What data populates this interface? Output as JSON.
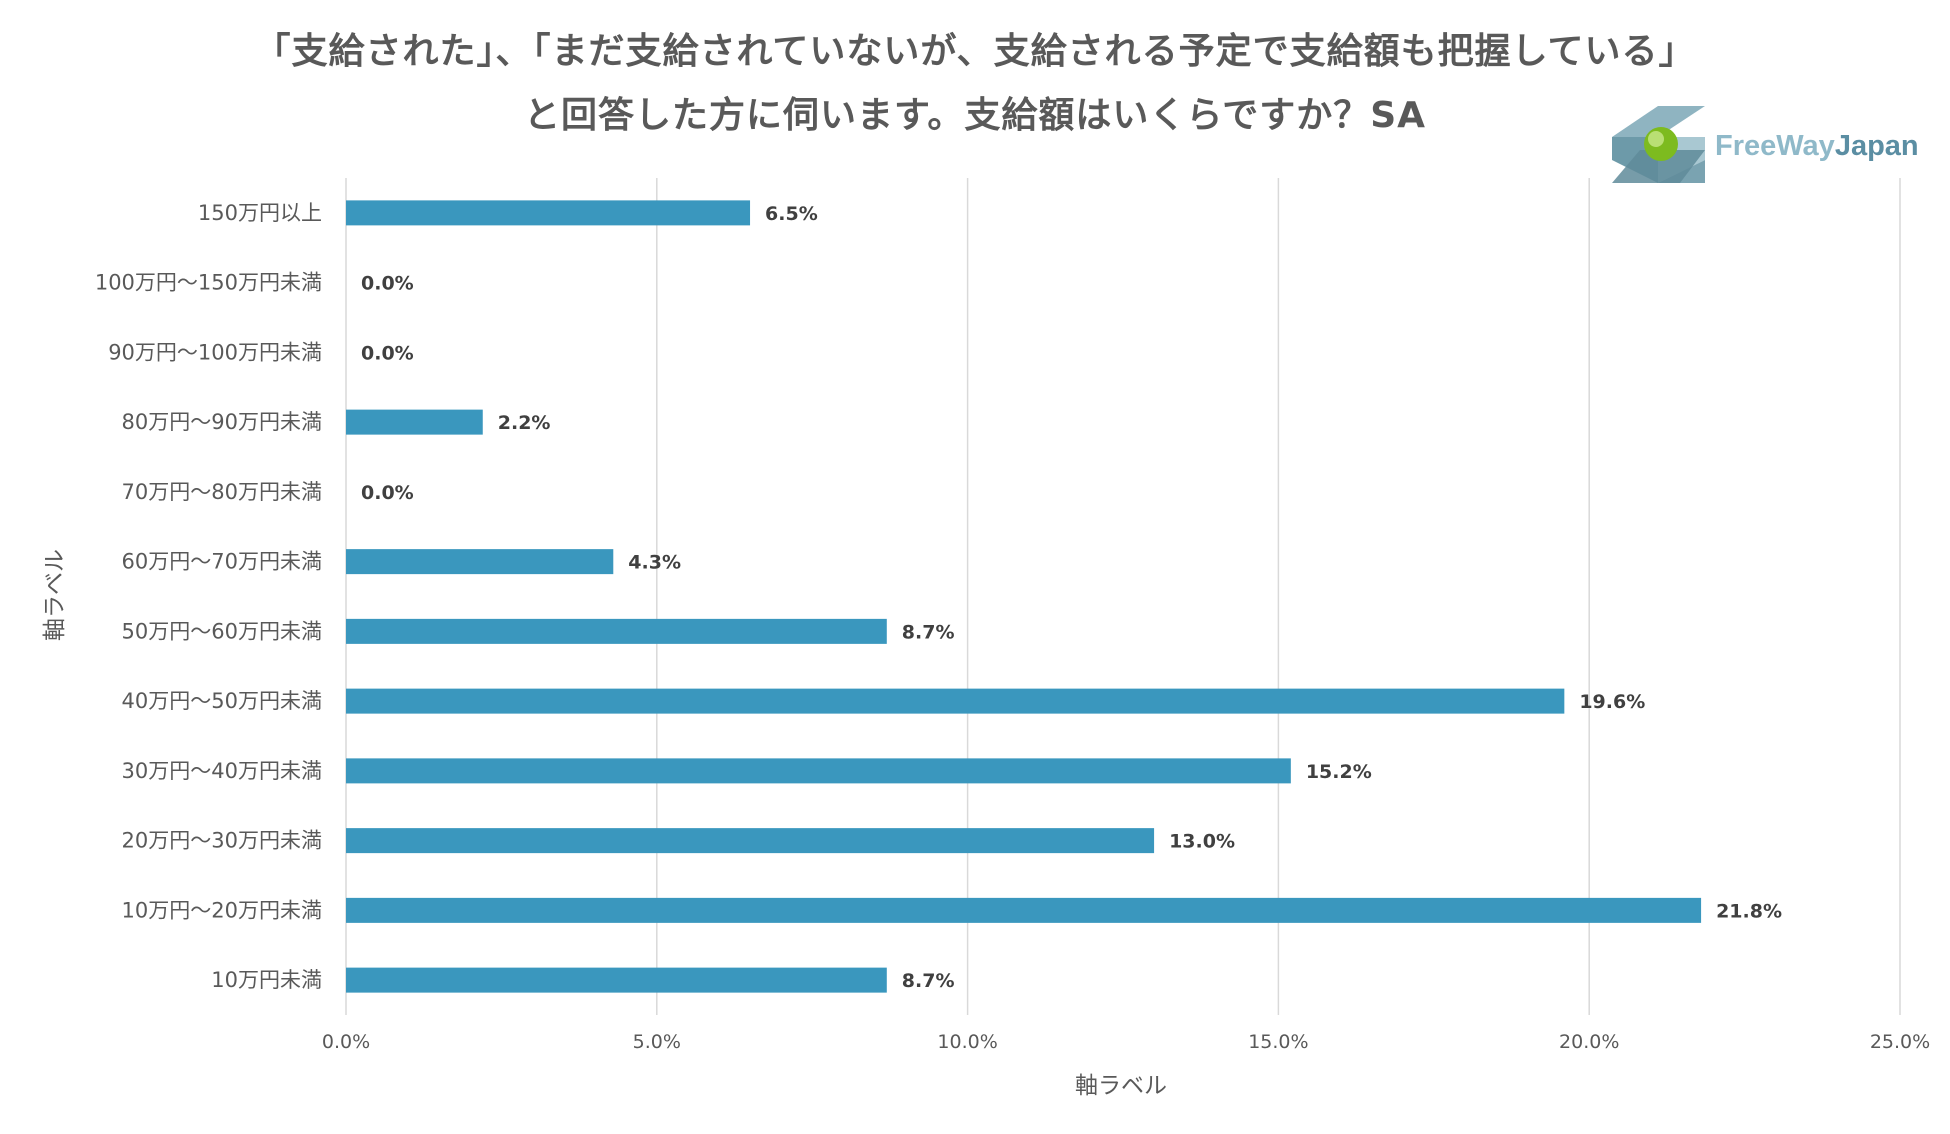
{
  "colors": {
    "bar": "#3a97be",
    "grid": "#d9d9d9",
    "text": "#595959",
    "data_label": "#404040",
    "logo_free": "#8fb9c9",
    "logo_japan": "#5b8ea3"
  },
  "logo": {
    "text_free_way": "FreeWay",
    "text_japan": "Japan",
    "icon": "freeway-japan-logo-icon"
  },
  "chart_data": {
    "type": "bar",
    "orientation": "horizontal",
    "title_line_1": "「支給された」、「まだ支給されていないが、支給される予定で支給額も把握している」",
    "title_line_2": "と回答した方に伺います。支給額はいくらですか？SA",
    "xlabel": "軸ラベル",
    "ylabel": "軸ラベル",
    "xlim": [
      0,
      25
    ],
    "x_ticks": [
      0,
      5,
      10,
      15,
      20,
      25
    ],
    "x_tick_labels": [
      "0.0%",
      "5.0%",
      "10.0%",
      "15.0%",
      "20.0%",
      "25.0%"
    ],
    "grid": true,
    "legend": "none",
    "categories": [
      "150万円以上",
      "100万円～150万円未満",
      "90万円～100万円未満",
      "80万円～90万円未満",
      "70万円～80万円未満",
      "60万円～70万円未満",
      "50万円～60万円未満",
      "40万円～50万円未満",
      "30万円～40万円未満",
      "20万円～30万円未満",
      "10万円～20万円未満",
      "10万円未満"
    ],
    "values": [
      6.5,
      0.0,
      0.0,
      2.2,
      0.0,
      4.3,
      8.7,
      19.6,
      15.2,
      13.0,
      21.8,
      8.7
    ],
    "value_labels": [
      "6.5%",
      "0.0%",
      "0.0%",
      "2.2%",
      "0.0%",
      "4.3%",
      "8.7%",
      "19.6%",
      "15.2%",
      "13.0%",
      "21.8%",
      "8.7%"
    ]
  }
}
